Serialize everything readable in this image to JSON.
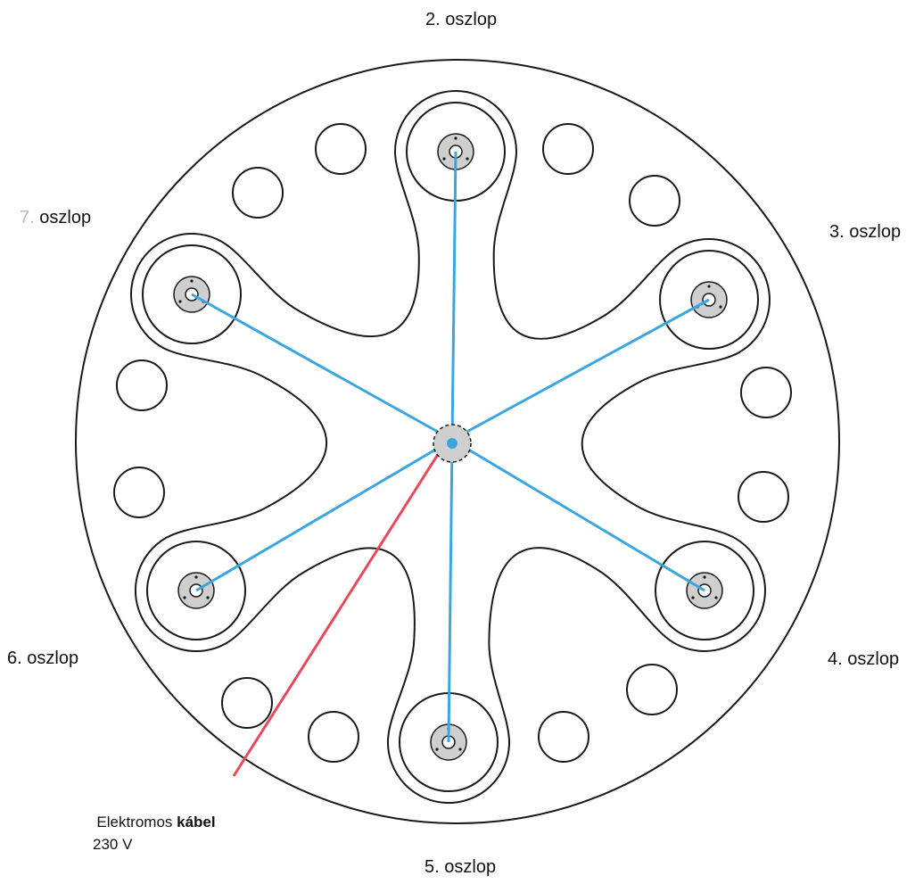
{
  "pole_labels": [
    {
      "number": "2.",
      "word": "oszlop"
    },
    {
      "number": "3.",
      "word": "oszlop"
    },
    {
      "number": "4.",
      "word": "oszlop"
    },
    {
      "number": "5.",
      "word": "oszlop"
    },
    {
      "number": "6.",
      "word": "oszlop"
    },
    {
      "number": "7.",
      "word": "oszlop"
    }
  ],
  "cable": {
    "label_plain": "Elektromos",
    "label_bold": "kábel",
    "voltage": "230 V"
  },
  "colors": {
    "outline": "#1a1a1a",
    "wire": "#3aa6e0",
    "cable": "#e8485c",
    "pad": "#cfcfcf"
  }
}
